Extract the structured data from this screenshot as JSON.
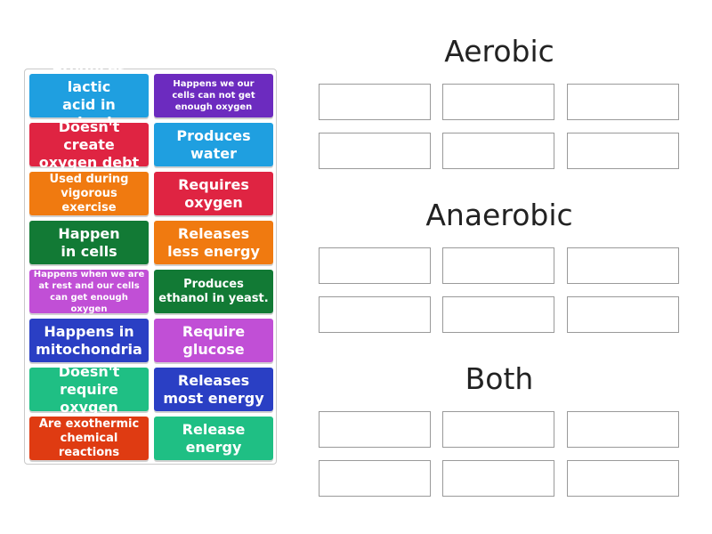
{
  "tiles": [
    {
      "label": "Produces lactic\nacid in animals",
      "color": "#1f9fe0"
    },
    {
      "label": "Happens we our\ncells can not get\nenough oxygen",
      "color": "#6c2bbf"
    },
    {
      "label": "Doesn't create\noxygen debt",
      "color": "#df2442"
    },
    {
      "label": "Produces\nwater",
      "color": "#1f9fe0"
    },
    {
      "label": "Used during\nvigorous exercise",
      "color": "#f07a10"
    },
    {
      "label": "Requires\noxygen",
      "color": "#df2442"
    },
    {
      "label": "Happen\nin cells",
      "color": "#127a35"
    },
    {
      "label": "Releases\nless energy",
      "color": "#f07a10"
    },
    {
      "label": "Happens when we are\nat rest and our cells\ncan get enough oxygen",
      "color": "#c14fd6"
    },
    {
      "label": "Produces\nethanol in yeast.",
      "color": "#127a35"
    },
    {
      "label": "Happens in\nmitochondria",
      "color": "#2a3fc4"
    },
    {
      "label": "Require\nglucose",
      "color": "#c14fd6"
    },
    {
      "label": "Doesn't\nrequire oxygen",
      "color": "#1fbf84"
    },
    {
      "label": "Releases\nmost energy",
      "color": "#2a3fc4"
    },
    {
      "label": "Are exothermic\nchemical reactions",
      "color": "#df3b12"
    },
    {
      "label": "Release\nenergy",
      "color": "#1fbf84"
    }
  ],
  "groups": [
    {
      "title": "Aerobic"
    },
    {
      "title": "Anaerobic"
    },
    {
      "title": "Both"
    }
  ]
}
